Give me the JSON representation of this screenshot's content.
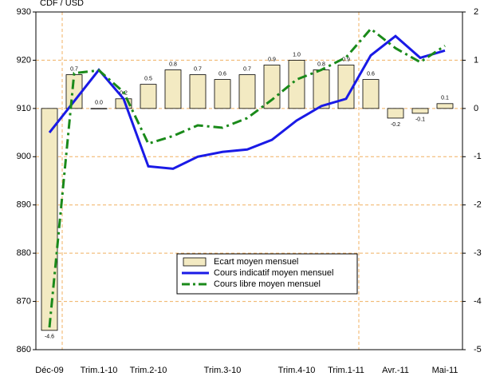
{
  "chart_data": {
    "type": "bar-line",
    "y_label": "CDF / USD",
    "categories": [
      "Déc-09",
      null,
      "Trim.1-10",
      null,
      "Trim.2-10",
      null,
      null,
      "Trim.3-10",
      null,
      null,
      "Trim.4-10",
      null,
      "Trim.1-11",
      null,
      "Avr.-11",
      null,
      "Mai-11"
    ],
    "ylim": [
      860,
      930
    ],
    "yticks": [
      860,
      870,
      880,
      890,
      900,
      910,
      920,
      930
    ],
    "y2lim": [
      -5,
      2
    ],
    "y2ticks": [
      -5,
      -4,
      -3,
      -2,
      -1,
      0,
      1,
      2
    ],
    "grid": true,
    "series": [
      {
        "name": "Ecart moyen mensuel",
        "kind": "bar",
        "axis": "y2",
        "color": "#f3eac2",
        "values": [
          -4.6,
          0.7,
          0.0,
          0.2,
          0.5,
          0.8,
          0.7,
          0.6,
          0.7,
          0.9,
          1.0,
          0.8,
          0.9,
          0.6,
          -0.2,
          -0.1,
          0.1
        ],
        "value_labels": [
          "-4.6",
          "0.7",
          "0.0",
          "0.2",
          "0.5",
          "0.8",
          "0.7",
          "0.6",
          "0.7",
          "0.9",
          "1.0",
          "0.8",
          "0.9",
          "0.6",
          "-0.2",
          "-0.1",
          "0.1"
        ]
      },
      {
        "name": "Cours indicatif  moyen mensuel",
        "kind": "line",
        "color": "#1a1ae6",
        "dash": false,
        "values": [
          905,
          911.5,
          918,
          912,
          898,
          897.5,
          900,
          901,
          901.5,
          903.5,
          907.5,
          910.5,
          912,
          921,
          925,
          920.5,
          922
        ]
      },
      {
        "name": "Cours libre moyen mensuel",
        "kind": "line",
        "color": "#1a8a1a",
        "dash": true,
        "values": [
          864.6,
          917.3,
          917.9,
          913.4,
          902.7,
          904.3,
          906.5,
          906,
          908,
          911.8,
          916,
          918,
          920.6,
          926.5,
          922.5,
          919.6,
          923
        ]
      }
    ]
  }
}
